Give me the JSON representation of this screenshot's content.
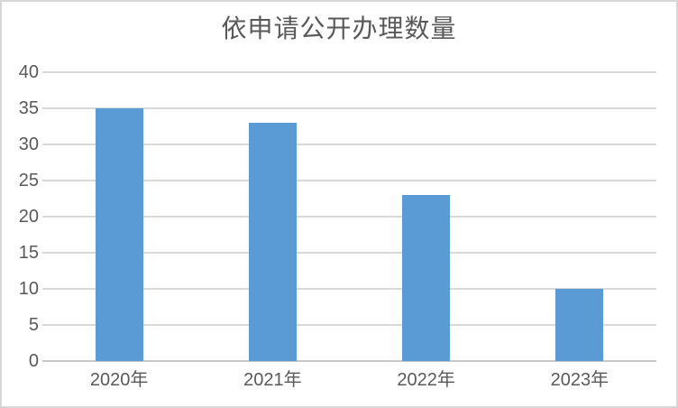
{
  "chart_data": {
    "type": "bar",
    "title": "依申请公开办理数量",
    "categories": [
      "2020年",
      "2021年",
      "2022年",
      "2023年"
    ],
    "values": [
      35,
      33,
      23,
      10
    ],
    "xlabel": "",
    "ylabel": "",
    "ylim": [
      0,
      40
    ],
    "ytick_step": 5,
    "ytick_labels": [
      "40",
      "35",
      "30",
      "25",
      "20",
      "15",
      "10",
      "5",
      "0"
    ],
    "legend_position": "none",
    "grid": "horizontal",
    "bar_color": "#5b9bd5",
    "gridline_color": "#d9d9d9",
    "axis_line_color": "#c9c9c9",
    "text_color": "#595959",
    "background_color": "#ffffff",
    "border_color": "#d7d7d7"
  }
}
